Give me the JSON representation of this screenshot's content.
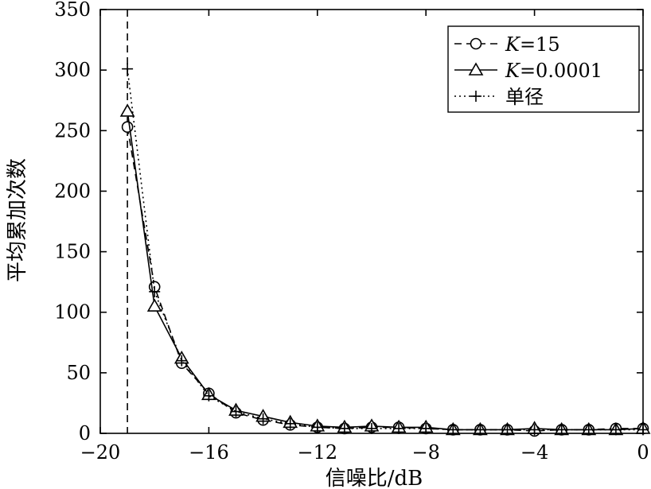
{
  "chart_data": {
    "type": "line",
    "xlabel": "信噪比/dB",
    "ylabel": "平均累加次数",
    "xlim": [
      -20,
      0
    ],
    "ylim": [
      0,
      350
    ],
    "xticks": [
      -20,
      -16,
      -12,
      -8,
      -4,
      0
    ],
    "yticks": [
      0,
      50,
      100,
      150,
      200,
      250,
      300,
      350
    ],
    "xtick_labels": [
      "−20",
      "−16",
      "−12",
      "−8",
      "−4",
      "0"
    ],
    "ytick_labels": [
      "0",
      "50",
      "100",
      "150",
      "200",
      "250",
      "300",
      "350"
    ],
    "vline_x": -19,
    "legend_position": "top-right",
    "grid": false,
    "series": [
      {
        "name_prefix": "K",
        "name_value": "=15",
        "style": "dashed",
        "marker": "circle",
        "x": [
          -19,
          -18,
          -17,
          -16,
          -15,
          -14,
          -13,
          -12,
          -11,
          -10,
          -9,
          -8,
          -7,
          -6,
          -5,
          -4,
          -3,
          -2,
          -1,
          0
        ],
        "y": [
          253,
          121,
          58,
          33,
          17,
          11,
          7,
          5,
          4,
          5,
          5,
          4,
          3,
          3,
          3,
          2,
          3,
          3,
          4,
          4
        ]
      },
      {
        "name_prefix": "K",
        "name_value": "=0.0001",
        "style": "solid",
        "marker": "triangle",
        "x": [
          -19,
          -18,
          -17,
          -16,
          -15,
          -14,
          -13,
          -12,
          -11,
          -10,
          -9,
          -8,
          -7,
          -6,
          -5,
          -4,
          -3,
          -2,
          -1,
          0
        ],
        "y": [
          266,
          105,
          62,
          32,
          19,
          14,
          9,
          6,
          5,
          6,
          5,
          5,
          3,
          3,
          3,
          4,
          3,
          3,
          3,
          4
        ]
      },
      {
        "name_prefix": "",
        "name_value": "单径",
        "style": "dotted",
        "marker": "plus",
        "x": [
          -19,
          -18,
          -17,
          -16,
          -15,
          -14,
          -13,
          -12,
          -11,
          -10,
          -9,
          -8,
          -7,
          -6,
          -5,
          -4,
          -3,
          -2,
          -1,
          0
        ],
        "y": [
          301,
          117,
          60,
          31,
          18,
          12,
          8,
          5,
          4,
          4,
          4,
          4,
          3,
          3,
          3,
          3,
          3,
          3,
          3,
          3
        ]
      }
    ]
  }
}
